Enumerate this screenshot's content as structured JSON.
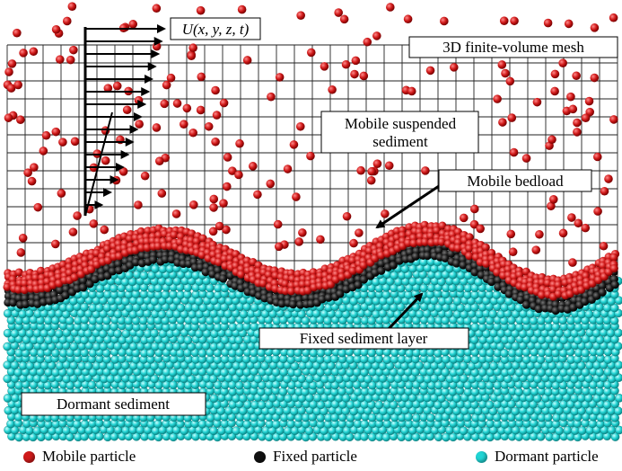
{
  "labels": {
    "velocity": "U(x, y, z, t)",
    "mesh": "3D finite-volume mesh",
    "suspended": "Mobile suspended\nsediment",
    "bedload": "Mobile bedload",
    "fixed_layer": "Fixed sediment layer",
    "dormant": "Dormant sediment"
  },
  "legend": [
    {
      "label": "Mobile particle",
      "color": "#d01a1a"
    },
    {
      "label": "Fixed particle",
      "color": "#111111"
    },
    {
      "label": "Dormant particle",
      "color": "#20d4d4"
    }
  ],
  "colors": {
    "mobile": "#d01a1a",
    "fixed": "#111111",
    "dormant": "#20d4d4"
  }
}
